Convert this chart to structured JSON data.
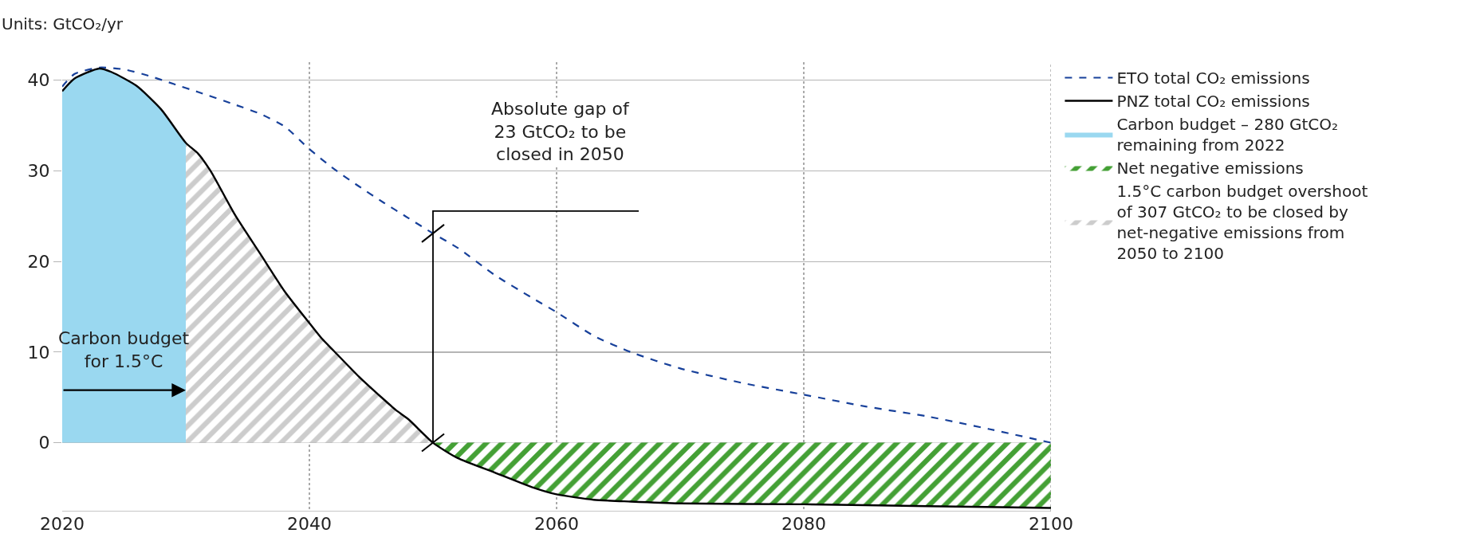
{
  "chart_data": {
    "type": "line",
    "ylabel": "Units: GtCO₂/yr",
    "xlim": [
      2020,
      2100
    ],
    "xticks": [
      2020,
      2040,
      2060,
      2080,
      2100
    ],
    "ylim": [
      -7.6,
      42
    ],
    "yticks": [
      0,
      10,
      20,
      30,
      40
    ],
    "grid": true,
    "legend": "right",
    "series": [
      {
        "name": "ETO total CO₂ emissions",
        "line_style": "dashed",
        "color": "#17409a",
        "x": [
          2020,
          2021,
          2023,
          2025,
          2027,
          2029,
          2031,
          2034,
          2036,
          2038,
          2040,
          2042,
          2044,
          2046,
          2048,
          2050,
          2052,
          2055,
          2058,
          2060,
          2063,
          2066,
          2070,
          2075,
          2080,
          2085,
          2090,
          2095,
          2100
        ],
        "values": [
          39.3,
          40.7,
          41.4,
          41.2,
          40.5,
          39.6,
          38.7,
          37.3,
          36.3,
          34.9,
          32.4,
          30.2,
          28.3,
          26.5,
          24.8,
          23.1,
          21.5,
          18.5,
          16.0,
          14.4,
          11.8,
          10.0,
          8.2,
          6.6,
          5.3,
          4.0,
          2.9,
          1.5,
          0
        ]
      },
      {
        "name": "PNZ total CO₂ emissions",
        "line_style": "solid",
        "color": "#000000",
        "x": [
          2020,
          2021,
          2023,
          2024,
          2026,
          2028,
          2030,
          2031,
          2032,
          2034,
          2036,
          2038,
          2040,
          2041,
          2042,
          2044,
          2046,
          2047,
          2048,
          2050,
          2052,
          2055,
          2058,
          2060,
          2063,
          2066,
          2070,
          2080,
          2090,
          2100
        ],
        "values": [
          38.8,
          40.2,
          41.3,
          40.9,
          39.4,
          36.8,
          33.1,
          31.9,
          30.0,
          25.1,
          20.9,
          16.7,
          13.2,
          11.5,
          10.1,
          7.3,
          4.8,
          3.6,
          2.6,
          0,
          -1.7,
          -3.3,
          -4.9,
          -5.7,
          -6.3,
          -6.5,
          -6.7,
          -6.8,
          -7.0,
          -7.2
        ]
      },
      {
        "name": "Carbon budget – 280 GtCO₂ remaining from 2022",
        "type": "area",
        "color": "#9ad8f0",
        "x": [
          2020,
          2021,
          2023,
          2024,
          2026,
          2028,
          2030
        ],
        "values": [
          38.8,
          40.2,
          41.3,
          40.9,
          39.4,
          36.8,
          33.1
        ]
      },
      {
        "name": "Net negative emissions",
        "type": "area",
        "color": "#44a035",
        "x": [
          2050,
          2052,
          2055,
          2058,
          2060,
          2063,
          2066,
          2070,
          2080,
          2090,
          2100
        ],
        "values": [
          0,
          -1.7,
          -3.3,
          -4.9,
          -5.7,
          -6.3,
          -6.5,
          -6.7,
          -6.8,
          -7.0,
          -7.2
        ]
      },
      {
        "name": "1.5°C carbon budget overshoot of 307 GtCO₂ to be closed by net-negative emissions from 2050 to 2100",
        "type": "area",
        "color": "#cccccc",
        "x": [
          2030,
          2031,
          2032,
          2034,
          2036,
          2038,
          2040,
          2041,
          2042,
          2044,
          2046,
          2047,
          2048,
          2050
        ],
        "values": [
          33.1,
          31.9,
          30.0,
          25.1,
          20.9,
          16.7,
          13.2,
          11.5,
          10.1,
          7.3,
          4.8,
          3.6,
          2.6,
          0
        ]
      }
    ],
    "annotations": [
      "Carbon budget for 1.5°C",
      "Absolute gap of 23 GtCO₂ to be closed in 2050"
    ]
  }
}
